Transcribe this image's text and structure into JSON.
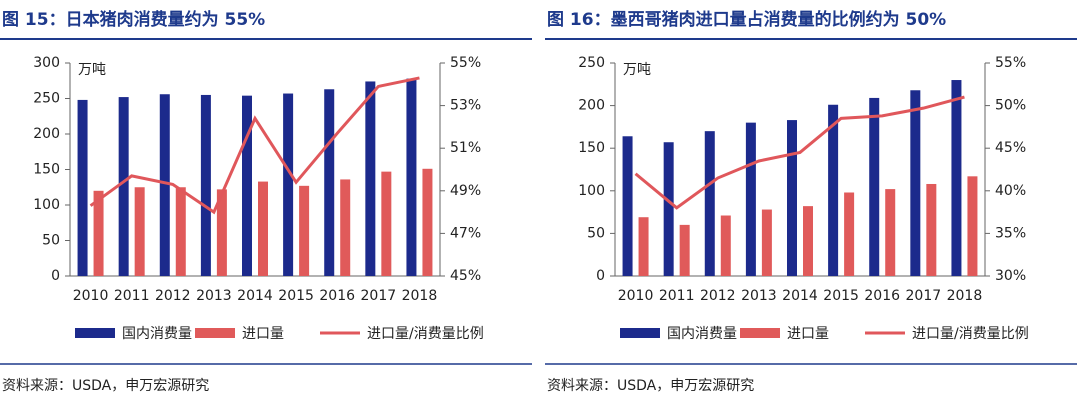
{
  "chart_data": [
    {
      "type": "bar",
      "title": "图 15：日本猪肉消费量约为 55%",
      "y_label": "万吨",
      "source": "资料来源：USDA，申万宏源研究",
      "categories": [
        "2010",
        "2011",
        "2012",
        "2013",
        "2014",
        "2015",
        "2016",
        "2017",
        "2018"
      ],
      "series": [
        {
          "name": "国内消费量",
          "type": "bar",
          "color": "#1c2a8c",
          "values": [
            248,
            252,
            256,
            255,
            254,
            257,
            263,
            274,
            278
          ]
        },
        {
          "name": "进口量",
          "type": "bar",
          "color": "#e05a5a",
          "values": [
            120,
            125,
            125,
            122,
            133,
            127,
            136,
            147,
            151
          ]
        },
        {
          "name": "进口量/消费量比例",
          "type": "line",
          "axis": "y2",
          "color": "#e0575b",
          "values": [
            48.3,
            49.7,
            49.3,
            48.0,
            52.4,
            49.4,
            51.7,
            53.9,
            54.3
          ]
        }
      ],
      "ylim": [
        0,
        300
      ],
      "yticks": [
        0,
        50,
        100,
        150,
        200,
        250,
        300
      ],
      "y2lim": [
        45,
        55
      ],
      "y2ticks": [
        {
          "value": 45,
          "label": "45%"
        },
        {
          "value": 47,
          "label": "47%"
        },
        {
          "value": 49,
          "label": "49%"
        },
        {
          "value": 51,
          "label": "51%"
        },
        {
          "value": 53,
          "label": "53%"
        },
        {
          "value": 55,
          "label": "55%"
        }
      ],
      "grid": false,
      "legend": "bottom"
    },
    {
      "type": "bar",
      "title": "图 16：墨西哥猪肉进口量占消费量的比例约为 50%",
      "y_label": "万吨",
      "source": "资料来源：USDA，申万宏源研究",
      "categories": [
        "2010",
        "2011",
        "2012",
        "2013",
        "2014",
        "2015",
        "2016",
        "2017",
        "2018"
      ],
      "series": [
        {
          "name": "国内消费量",
          "type": "bar",
          "color": "#1c2a8c",
          "values": [
            164,
            157,
            170,
            180,
            183,
            201,
            209,
            218,
            230
          ]
        },
        {
          "name": "进口量",
          "type": "bar",
          "color": "#e05a5a",
          "values": [
            69,
            60,
            71,
            78,
            82,
            98,
            102,
            108,
            117
          ]
        },
        {
          "name": "进口量/消费量比例",
          "type": "line",
          "axis": "y2",
          "color": "#e0575b",
          "values": [
            42,
            38,
            41.5,
            43.5,
            44.5,
            48.5,
            48.8,
            49.7,
            51
          ]
        }
      ],
      "ylim": [
        0,
        250
      ],
      "yticks": [
        0,
        50,
        100,
        150,
        200,
        250
      ],
      "y2lim": [
        30,
        55
      ],
      "y2ticks": [
        {
          "value": 30,
          "label": "30%"
        },
        {
          "value": 35,
          "label": "35%"
        },
        {
          "value": 40,
          "label": "40%"
        },
        {
          "value": 45,
          "label": "45%"
        },
        {
          "value": 50,
          "label": "50%"
        },
        {
          "value": 55,
          "label": "55%"
        }
      ],
      "grid": false,
      "legend": "bottom"
    }
  ]
}
